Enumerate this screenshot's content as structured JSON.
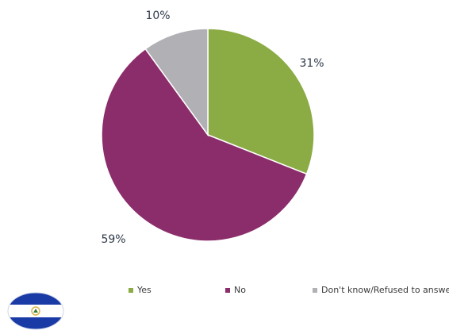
{
  "chart_data": {
    "type": "pie",
    "categories": [
      "Yes",
      "No",
      "Don't know/Refused to answer"
    ],
    "values": [
      31,
      59,
      10
    ],
    "labels": [
      "31%",
      "59%",
      "10%"
    ],
    "colors": [
      "#8bac44",
      "#8b2d6b",
      "#b1b0b5"
    ],
    "start_angle": "12 o'clock",
    "direction": "clockwise",
    "legend_position": "bottom"
  },
  "legend": {
    "items": [
      {
        "label": "Yes",
        "color": "#8bac44"
      },
      {
        "label": "No",
        "color": "#8b2d6b"
      },
      {
        "label": "Don't know/Refused to answer",
        "color": "#b1b0b5"
      }
    ]
  },
  "flag": {
    "icon": "el-salvador-flag-icon",
    "colors": {
      "blue": "#1a3aa6",
      "white": "#ffffff",
      "emblem": "#d9b64a"
    }
  }
}
